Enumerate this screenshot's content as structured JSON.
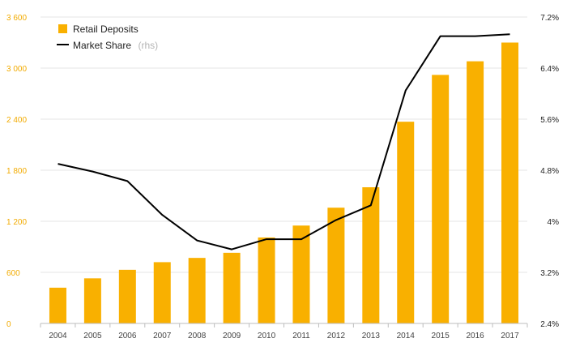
{
  "chart_data": {
    "type": "bar",
    "categories": [
      "2004",
      "2005",
      "2006",
      "2007",
      "2008",
      "2009",
      "2010",
      "2011",
      "2012",
      "2013",
      "2014",
      "2015",
      "2016",
      "2017"
    ],
    "series": [
      {
        "name": "Retail Deposits",
        "type": "bar",
        "axis": "left",
        "color": "#f9b000",
        "values": [
          420,
          530,
          630,
          720,
          770,
          830,
          1010,
          1150,
          1360,
          1600,
          2370,
          2920,
          3080,
          3300
        ]
      },
      {
        "name": "Market Share",
        "type": "line",
        "axis": "right",
        "color": "#000000",
        "values": [
          4.9,
          4.78,
          4.63,
          4.1,
          3.7,
          3.56,
          3.72,
          3.72,
          4.02,
          4.25,
          6.05,
          6.9,
          6.9,
          6.93
        ]
      }
    ],
    "y_left": {
      "range": [
        0,
        3600
      ],
      "ticks": [
        0,
        600,
        1200,
        1800,
        2400,
        3000,
        3600
      ],
      "tick_labels": [
        "0",
        "600",
        "1 200",
        "1 800",
        "2 400",
        "3 000",
        "3 600"
      ],
      "color": "#f2ab00"
    },
    "y_right": {
      "range": [
        2.4,
        7.2
      ],
      "ticks": [
        2.4,
        3.2,
        4.0,
        4.8,
        5.6,
        6.4,
        7.2
      ],
      "tick_labels": [
        "2.4%",
        "3.2%",
        "4%",
        "4.8%",
        "5.6%",
        "6.4%",
        "7.2%"
      ]
    },
    "legend": {
      "position": "top-left",
      "items": [
        {
          "label": "Retail Deposits",
          "suffix": "",
          "marker": "square",
          "color": "#f9b000"
        },
        {
          "label": "Market Share",
          "suffix": "(rhs)",
          "marker": "line",
          "color": "#000000"
        }
      ]
    },
    "grid": true,
    "title": "",
    "xlabel": "",
    "ylabel": ""
  }
}
